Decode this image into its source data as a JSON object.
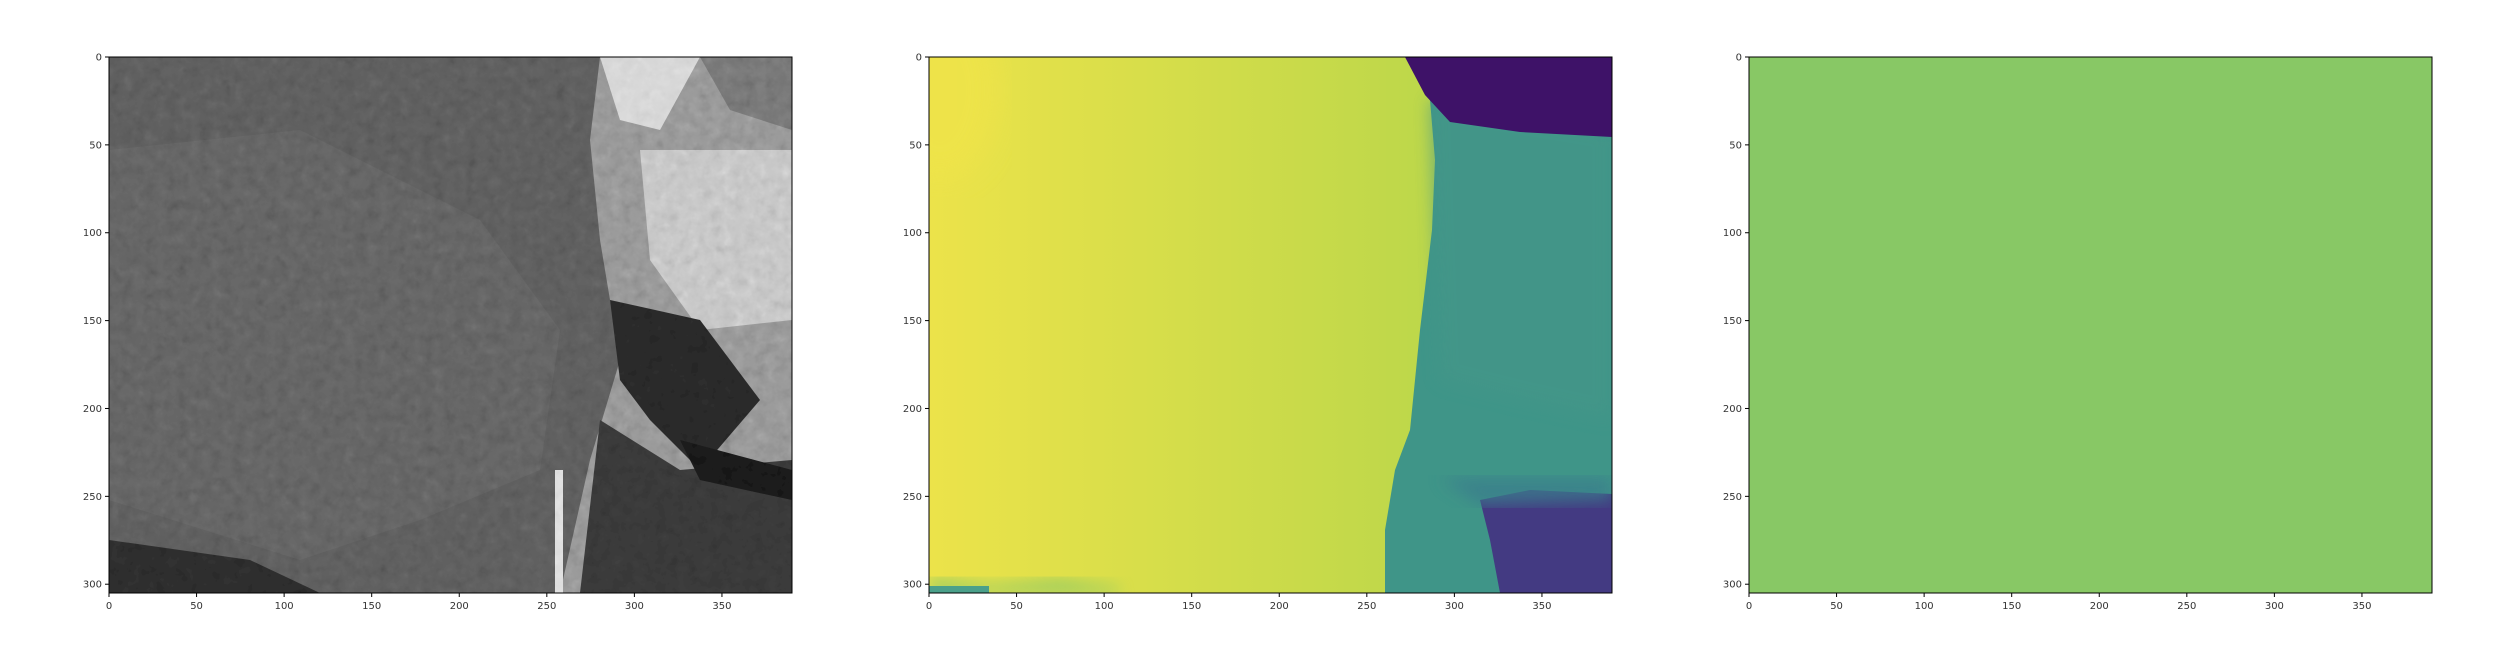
{
  "chart_data": [
    {
      "type": "heatmap",
      "panel": "left",
      "colormap": "grayscale",
      "content": "grayscale image of an elephant ear and skin",
      "xlim": [
        0,
        390
      ],
      "ylim": [
        305,
        0
      ],
      "xticks": [
        "0",
        "50",
        "100",
        "150",
        "200",
        "250",
        "300",
        "350"
      ],
      "yticks": [
        "0",
        "50",
        "100",
        "150",
        "200",
        "250",
        "300"
      ],
      "title": "",
      "xlabel": "",
      "ylabel": ""
    },
    {
      "type": "heatmap",
      "panel": "middle",
      "colormap": "viridis",
      "content": "smooth depth-like map: yellow left region, teal right region, dark purple top-right and bottom-right corners",
      "xlim": [
        0,
        390
      ],
      "ylim": [
        305,
        0
      ],
      "xticks": [
        "0",
        "50",
        "100",
        "150",
        "200",
        "250",
        "300",
        "350"
      ],
      "yticks": [
        "0",
        "50",
        "100",
        "150",
        "200",
        "250",
        "300"
      ],
      "colors": {
        "yellow": "#e6e24a",
        "yellow_green": "#c8dc48",
        "teal": "#3f9588",
        "purple": "#3e1268",
        "violet": "#433a82"
      },
      "title": "",
      "xlabel": "",
      "ylabel": ""
    },
    {
      "type": "heatmap",
      "panel": "right",
      "colormap": "viridis",
      "content": "uniform single-value map",
      "uniform_color": "#88c865",
      "xlim": [
        0,
        390
      ],
      "ylim": [
        305,
        0
      ],
      "xticks": [
        "0",
        "50",
        "100",
        "150",
        "200",
        "250",
        "300",
        "350"
      ],
      "yticks": [
        "0",
        "50",
        "100",
        "150",
        "200",
        "250",
        "300"
      ],
      "title": "",
      "xlabel": "",
      "ylabel": ""
    }
  ]
}
